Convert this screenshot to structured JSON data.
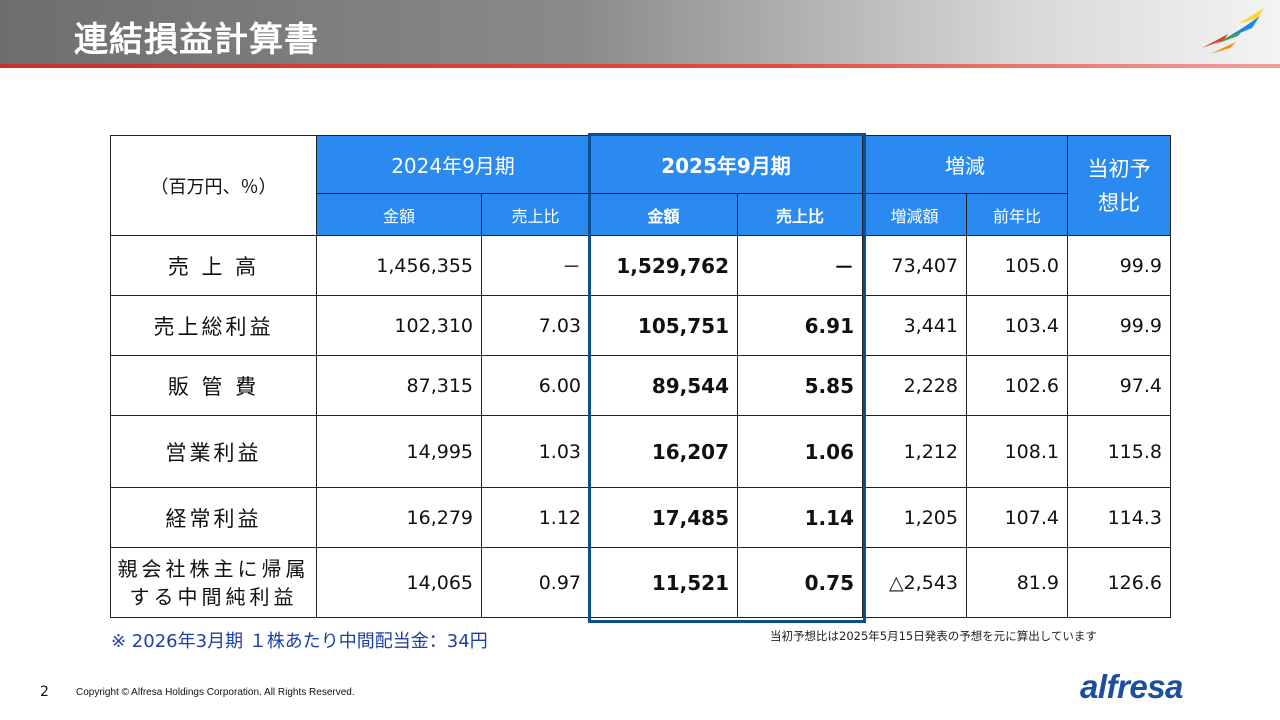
{
  "title": "連結損益計算書",
  "table": {
    "unit_label": "（百万円、％）",
    "periods": {
      "prev": "2024年9月期",
      "curr": "2025年9月期",
      "change": "増減",
      "forecast": "当初予想比"
    },
    "subheaders": {
      "amount": "金額",
      "ratio": "売上比",
      "curr_amount": "金額",
      "curr_ratio": "売上比",
      "diff": "増減額",
      "yoy": "前年比"
    },
    "rows": [
      {
        "label": "売 上 高",
        "prev_amount": "1,456,355",
        "prev_ratio": "－",
        "curr_amount": "1,529,762",
        "curr_ratio": "－",
        "diff": "73,407",
        "yoy": "105.0",
        "forecast": "99.9"
      },
      {
        "label": "売上総利益",
        "prev_amount": "102,310",
        "prev_ratio": "7.03",
        "curr_amount": "105,751",
        "curr_ratio": "6.91",
        "diff": "3,441",
        "yoy": "103.4",
        "forecast": "99.9"
      },
      {
        "label": "販 管 費",
        "prev_amount": "87,315",
        "prev_ratio": "6.00",
        "curr_amount": "89,544",
        "curr_ratio": "5.85",
        "diff": "2,228",
        "yoy": "102.6",
        "forecast": "97.4"
      },
      {
        "label": "営業利益",
        "prev_amount": "14,995",
        "prev_ratio": "1.03",
        "curr_amount": "16,207",
        "curr_ratio": "1.06",
        "diff": "1,212",
        "yoy": "108.1",
        "forecast": "115.8"
      },
      {
        "label": "経常利益",
        "prev_amount": "16,279",
        "prev_ratio": "1.12",
        "curr_amount": "17,485",
        "curr_ratio": "1.14",
        "diff": "1,205",
        "yoy": "107.4",
        "forecast": "114.3"
      },
      {
        "label_line1": "親会社株主に帰属",
        "label_line2": "する中間純利益",
        "prev_amount": "14,065",
        "prev_ratio": "0.97",
        "curr_amount": "11,521",
        "curr_ratio": "0.75",
        "diff": "△2,543",
        "yoy": "81.9",
        "forecast": "126.6"
      }
    ]
  },
  "note_dividend": "※ 2026年3月期 １株あたり中間配当金：34円",
  "note_forecast": "当初予想比は2025年5月15日発表の予想を元に算出しています",
  "footer": {
    "page_number": "2",
    "copyright": "Copyright © Alfresa Holdings Corporation. All Rights Reserved.",
    "brand": "alfresa"
  },
  "colors": {
    "header_blue": "#2a8af0",
    "highlight_border": "#0e4d8f",
    "note_blue": "#1f3fa6",
    "accent_red": "#c9302c"
  }
}
